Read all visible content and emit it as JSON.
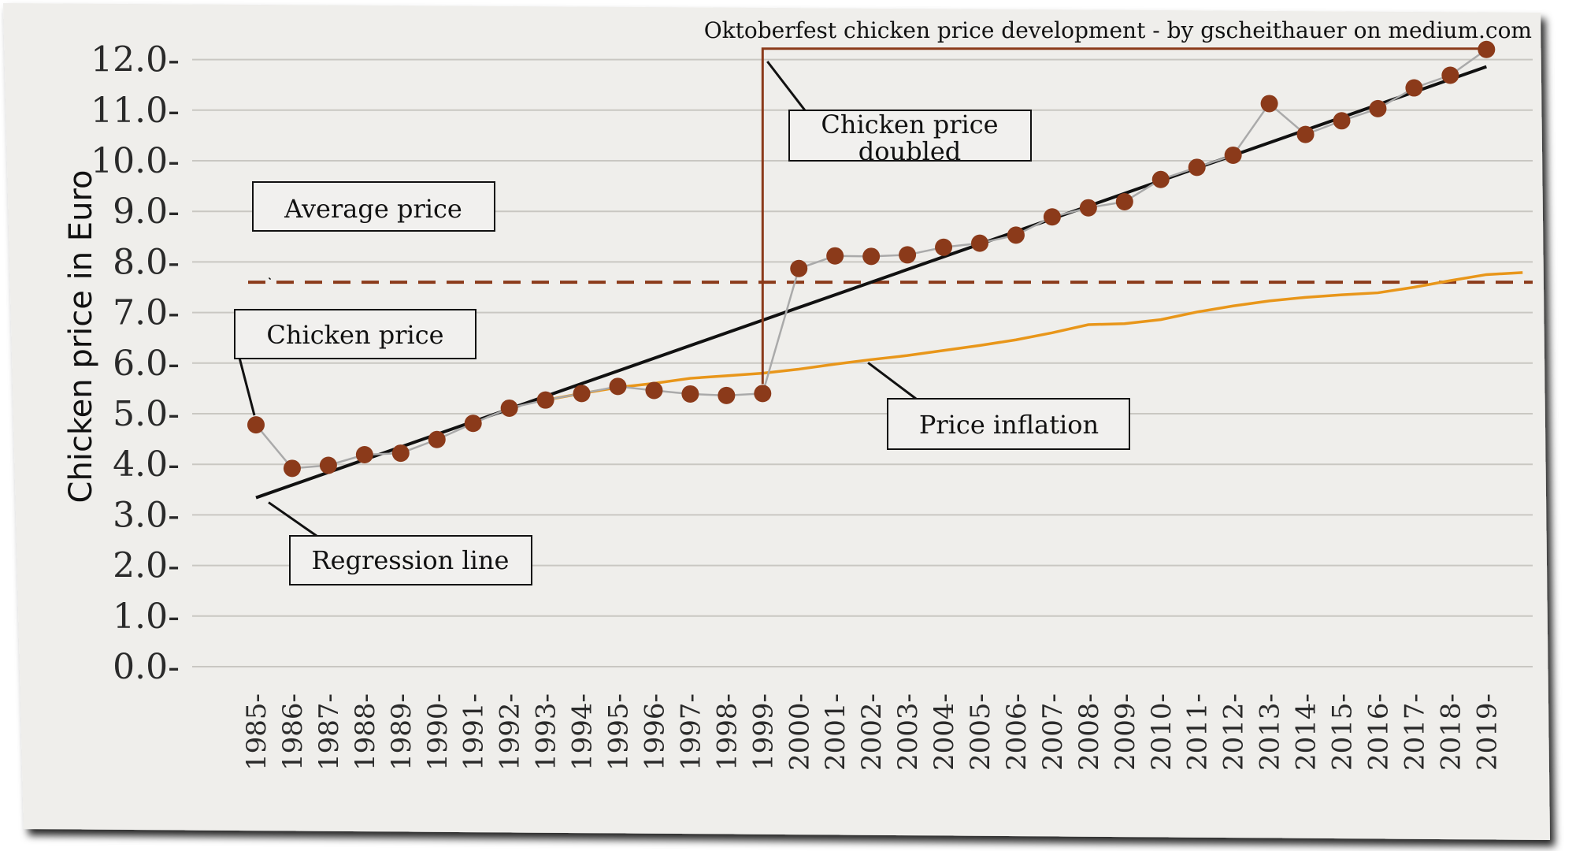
{
  "chart_data": {
    "type": "line",
    "title": "Oktoberfest chicken price development - by gscheithauer on medium.com",
    "ylabel": "Chicken price in Euro",
    "xlabel": "",
    "ylim": [
      0,
      12
    ],
    "y_ticks": [
      "0.0",
      "1.0",
      "2.0",
      "3.0",
      "4.0",
      "5.0",
      "6.0",
      "7.0",
      "8.0",
      "9.0",
      "10.0",
      "11.0",
      "12.0"
    ],
    "grid": "horizontal",
    "x": [
      "1985",
      "1986",
      "1987",
      "1988",
      "1989",
      "1990",
      "1991",
      "1992",
      "1993",
      "1994",
      "1995",
      "1996",
      "1997",
      "1998",
      "1999",
      "2000",
      "2001",
      "2002",
      "2003",
      "2004",
      "2005",
      "2006",
      "2007",
      "2008",
      "2009",
      "2010",
      "2011",
      "2012",
      "2013",
      "2014",
      "2015",
      "2016",
      "2017",
      "2018",
      "2019"
    ],
    "series": [
      {
        "kind": "line+markers",
        "color": "#8b3a1a",
        "line_color": "#aaaaaa",
        "values": [
          4.78,
          3.92,
          3.98,
          4.19,
          4.22,
          4.49,
          4.81,
          5.11,
          5.27,
          5.4,
          5.54,
          5.46,
          5.39,
          5.36,
          5.4,
          7.87,
          8.12,
          8.11,
          8.14,
          8.29,
          8.37,
          8.53,
          8.89,
          9.07,
          9.19,
          9.63,
          9.87,
          10.11,
          11.13,
          10.52,
          10.79,
          11.03,
          11.44,
          11.69,
          12.2
        ]
      },
      {
        "kind": "line",
        "color": "#e8961a",
        "x": [
          "1993",
          "1994",
          "1995",
          "1996",
          "1997",
          "1998",
          "1999",
          "2000",
          "2001",
          "2002",
          "2003",
          "2004",
          "2005",
          "2006",
          "2007",
          "2008",
          "2009",
          "2010",
          "2011",
          "2012",
          "2013",
          "2014",
          "2015",
          "2016",
          "2017",
          "2018",
          "2019",
          "2020"
        ],
        "values": [
          5.27,
          5.4,
          5.52,
          5.6,
          5.7,
          5.75,
          5.8,
          5.88,
          5.98,
          6.07,
          6.15,
          6.25,
          6.35,
          6.46,
          6.6,
          6.76,
          6.78,
          6.86,
          7.01,
          7.13,
          7.23,
          7.3,
          7.35,
          7.39,
          7.5,
          7.63,
          7.75,
          7.79
        ]
      },
      {
        "kind": "regression",
        "color": "#111111",
        "from": [
          "1985",
          3.34
        ],
        "to": [
          "2019",
          11.86
        ]
      },
      {
        "kind": "hline-dashed",
        "color": "#8b3a1a",
        "value": 7.6
      }
    ],
    "annotations": [
      {
        "text": "Chicken price",
        "target": [
          "1985",
          4.78
        ]
      },
      {
        "text": "Average price",
        "target": [
          "1985",
          7.6
        ]
      },
      {
        "text": "Regression line",
        "target": [
          "1985",
          3.34
        ]
      },
      {
        "text": "Price inflation",
        "target": [
          "2002",
          6.07
        ]
      },
      {
        "text": "Chicken price\ndoubled",
        "target": [
          "1999",
          12.0
        ],
        "bracket": {
          "from": [
            "1999",
            5.4
          ],
          "to": [
            "2019",
            12.2
          ]
        }
      }
    ]
  }
}
